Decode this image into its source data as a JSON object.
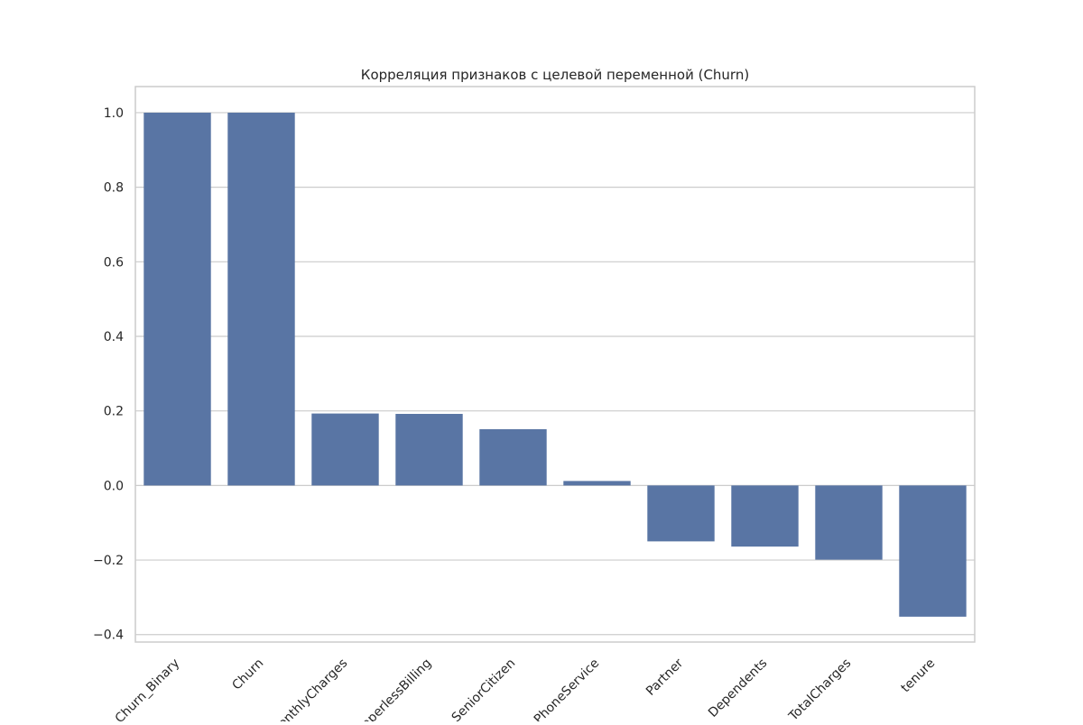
{
  "chart_data": {
    "type": "bar",
    "title": "Корреляция признаков с целевой переменной (Churn)",
    "xlabel": "",
    "ylabel": "",
    "categories": [
      "Churn_Binary",
      "Churn",
      "MonthlyCharges",
      "PaperlessBilling",
      "SeniorCitizen",
      "PhoneService",
      "Partner",
      "Dependents",
      "TotalCharges",
      "tenure"
    ],
    "values": [
      1.0,
      1.0,
      0.193,
      0.192,
      0.151,
      0.012,
      -0.15,
      -0.164,
      -0.199,
      -0.352
    ],
    "ylim": [
      -0.42,
      1.07
    ],
    "yticks": [
      -0.4,
      -0.2,
      0.0,
      0.2,
      0.4,
      0.6,
      0.8,
      1.0
    ],
    "ytick_labels": [
      "−0.4",
      "−0.2",
      "0.0",
      "0.2",
      "0.4",
      "0.6",
      "0.8",
      "1.0"
    ],
    "bar_color": "#5975a4",
    "grid": true,
    "grid_color": "#cccccc",
    "frame_color": "#cccccc",
    "background_color": "#ffffff"
  }
}
